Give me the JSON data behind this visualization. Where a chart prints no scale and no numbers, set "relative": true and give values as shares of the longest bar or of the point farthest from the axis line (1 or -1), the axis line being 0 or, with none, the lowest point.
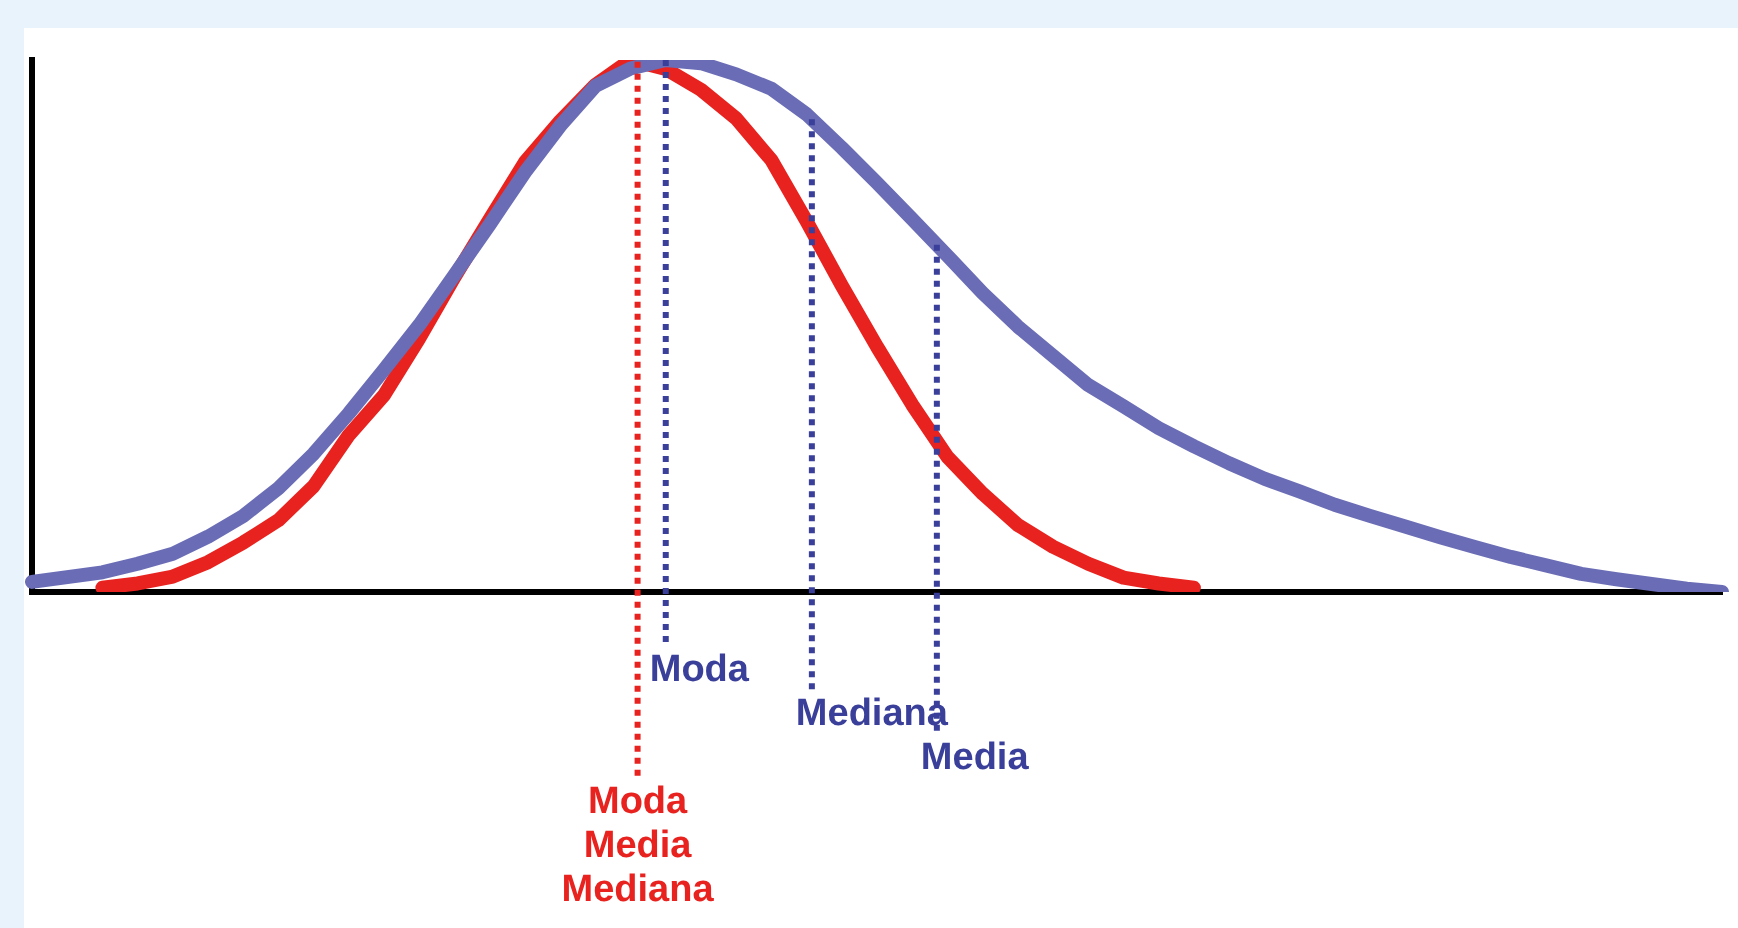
{
  "chart_data": {
    "type": "line",
    "relative": true,
    "tick_labels": false,
    "grid": false,
    "legend": false,
    "marker": "none",
    "line_style": "solid",
    "categories": [
      null,
      null,
      null,
      null,
      null,
      null,
      null,
      null,
      null,
      null,
      null,
      null,
      null,
      null,
      null,
      null,
      null,
      null,
      null,
      null,
      null,
      null,
      null,
      null,
      null,
      null,
      null,
      null,
      null,
      null,
      null,
      null,
      null,
      null,
      null,
      null,
      null,
      null,
      null,
      null,
      null,
      null,
      null,
      null,
      null,
      null,
      null,
      null,
      null
    ],
    "series": [
      {
        "color": "#6a6db5",
        "values": [
          0.019,
          0.028,
          0.037,
          0.053,
          0.072,
          0.104,
          0.143,
          0.195,
          0.26,
          0.336,
          0.418,
          0.502,
          0.596,
          0.691,
          0.789,
          0.876,
          0.951,
          0.984,
          1,
          0.994,
          0.973,
          0.946,
          0.898,
          0.835,
          0.769,
          0.701,
          0.632,
          0.562,
          0.499,
          0.444,
          0.389,
          0.349,
          0.308,
          0.274,
          0.242,
          0.213,
          0.189,
          0.164,
          0.143,
          0.123,
          0.103,
          0.084,
          0.066,
          0.05,
          0.034,
          0.024,
          0.015,
          0.006,
          0
        ]
      },
      {
        "color": "#e8231f",
        "values": [
          null,
          null,
          0.008,
          0.016,
          0.029,
          0.056,
          0.093,
          0.135,
          0.199,
          0.295,
          0.37,
          0.477,
          0.592,
          0.701,
          0.808,
          0.885,
          0.953,
          1,
          0.983,
          0.944,
          0.89,
          0.812,
          0.697,
          0.576,
          0.461,
          0.352,
          0.254,
          0.185,
          0.126,
          0.085,
          0.053,
          0.027,
          0.016,
          0.008,
          null,
          null,
          null,
          null,
          null,
          null,
          null,
          null,
          null,
          null,
          null,
          null,
          null,
          null,
          null
        ]
      }
    ],
    "annotations": [
      "Moda",
      "Mediana",
      "Media",
      "Moda\nMedia\nMediana"
    ]
  }
}
